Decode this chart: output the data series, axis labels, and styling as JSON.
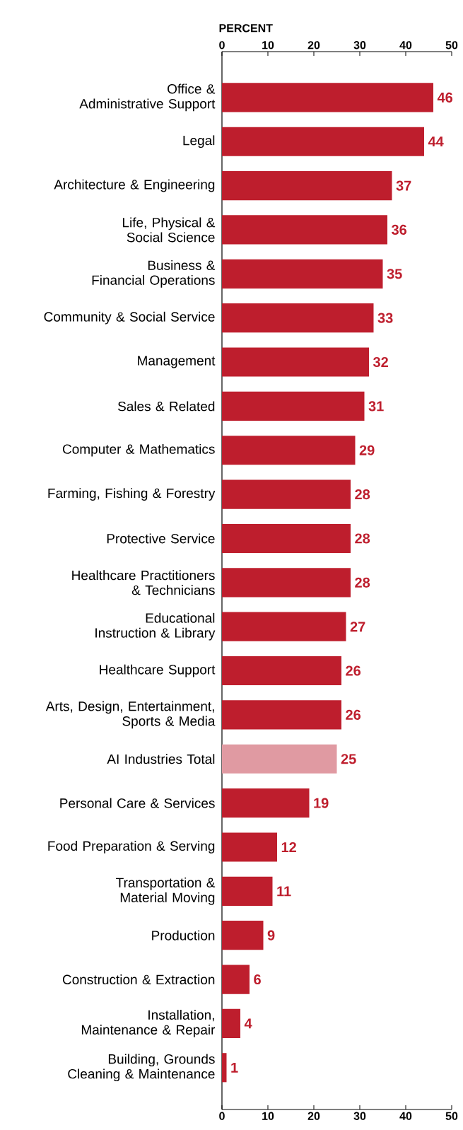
{
  "chart_data": {
    "type": "bar",
    "orientation": "horizontal",
    "x2label": "PERCENT",
    "categories": [
      "Office & Administrative Support",
      "Legal",
      "Architecture & Engineering",
      "Life, Physical & Social Science",
      "Business & Financial Operations",
      "Community & Social Service",
      "Management",
      "Sales & Related",
      "Computer & Mathematics",
      "Farming, Fishing & Forestry",
      "Protective Service",
      "Healthcare Practitioners & Technicians",
      "Educational Instruction & Library",
      "Healthcare Support",
      "Arts, Design, Entertainment, Sports & Media",
      "AI Industries Total",
      "Personal Care & Services",
      "Food Preparation & Serving",
      "Transportation & Material Moving",
      "Production",
      "Construction & Extraction",
      "Installation, Maintenance & Repair",
      "Building, Grounds Cleaning & Maintenance"
    ],
    "values": [
      46,
      44,
      37,
      36,
      35,
      33,
      32,
      31,
      29,
      28,
      28,
      28,
      27,
      26,
      26,
      25,
      19,
      12,
      11,
      9,
      6,
      4,
      1
    ],
    "colors": [
      "#be1e2d",
      "#be1e2d",
      "#be1e2d",
      "#be1e2d",
      "#be1e2d",
      "#be1e2d",
      "#be1e2d",
      "#be1e2d",
      "#be1e2d",
      "#be1e2d",
      "#be1e2d",
      "#be1e2d",
      "#be1e2d",
      "#be1e2d",
      "#be1e2d",
      "#e09aa2",
      "#be1e2d",
      "#be1e2d",
      "#be1e2d",
      "#be1e2d",
      "#be1e2d",
      "#be1e2d",
      "#be1e2d"
    ],
    "xlim": [
      0,
      50
    ],
    "xticks": [
      0,
      10,
      20,
      30,
      40,
      50
    ],
    "x2lim": [
      0,
      50
    ],
    "x2ticks": [
      0,
      10,
      20,
      30,
      40,
      50
    ],
    "data_labels": true
  }
}
